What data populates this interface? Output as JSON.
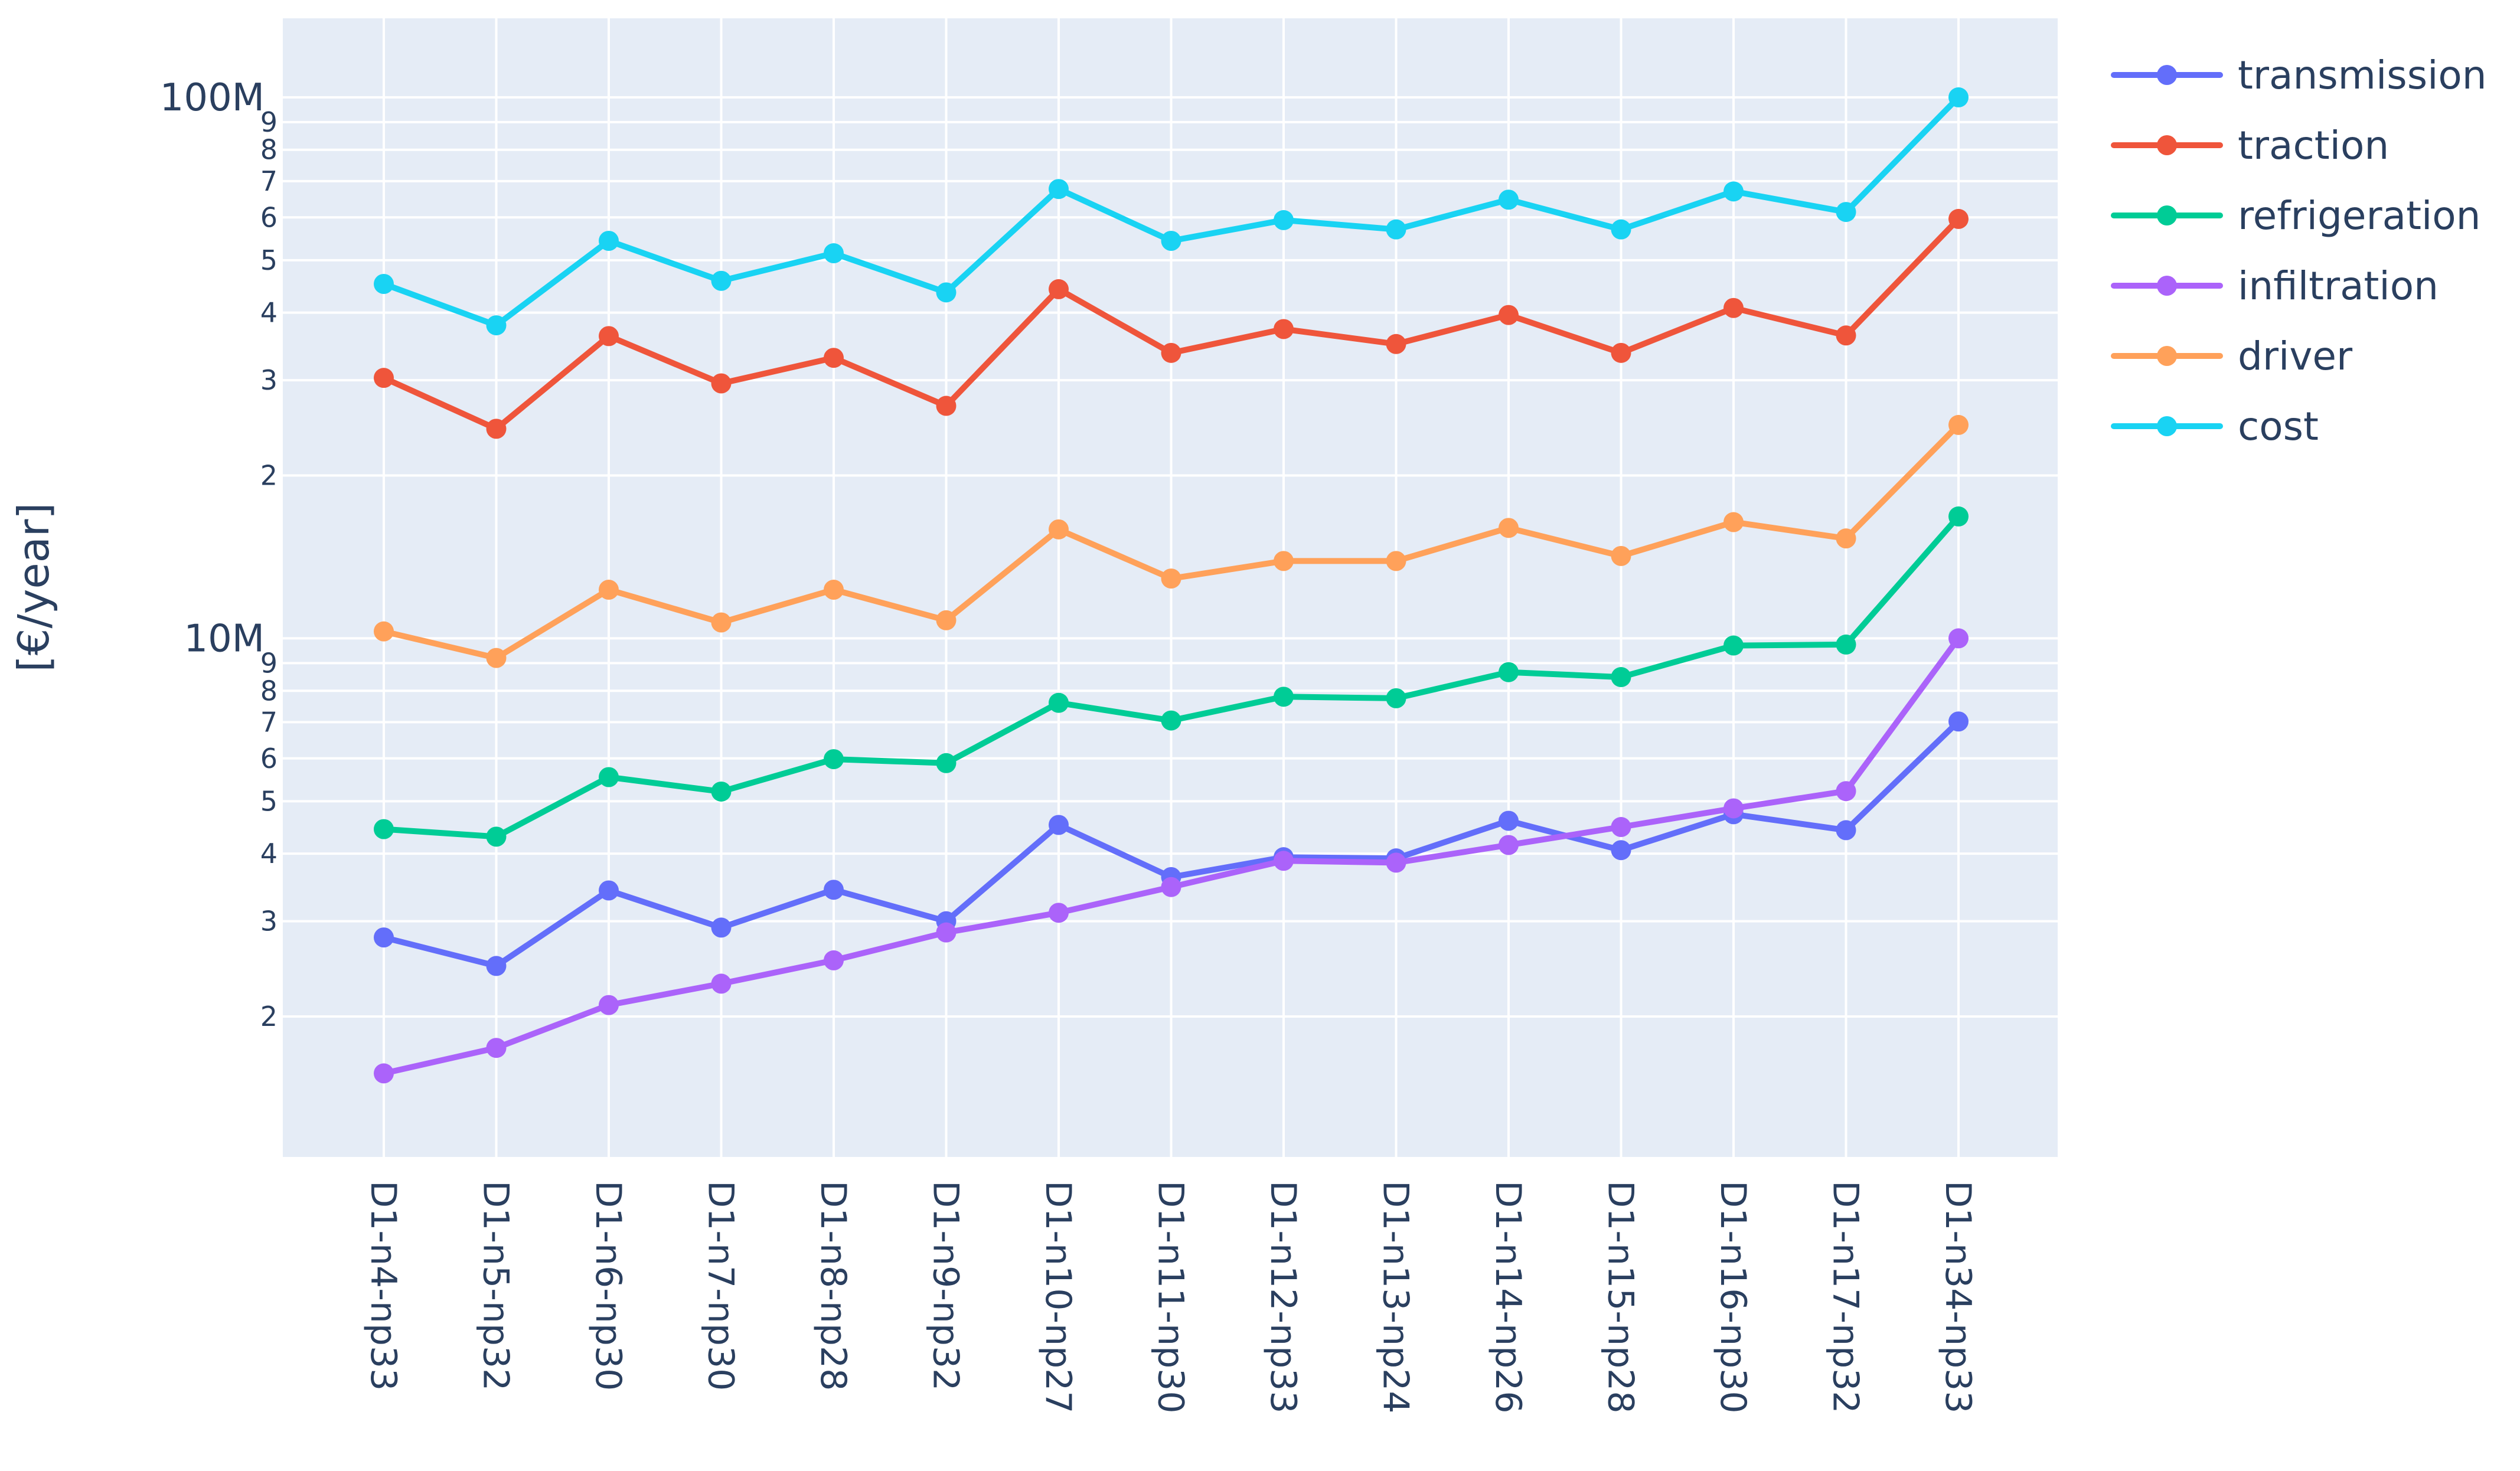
{
  "chart_data": {
    "type": "line",
    "title": "",
    "xlabel": "",
    "ylabel": "[€/year]",
    "yscale": "log",
    "ylim": [
      1100000,
      140000000
    ],
    "grid": true,
    "legend_position": "right",
    "categories": [
      "D1-n4-np33",
      "D1-n5-np32",
      "D1-n6-np30",
      "D1-n7-np30",
      "D1-n8-np28",
      "D1-n9-np32",
      "D1-n10-np27",
      "D1-n11-np30",
      "D1-n12-np33",
      "D1-n13-np24",
      "D1-n14-np26",
      "D1-n15-np28",
      "D1-n16-np30",
      "D1-n17-np32",
      "D1-n34-np33"
    ],
    "y_major_ticks": [
      {
        "value": 10000000,
        "label": "10M"
      },
      {
        "value": 100000000,
        "label": "100M"
      }
    ],
    "y_minor_ticks": [
      {
        "value": 2000000,
        "label": "2"
      },
      {
        "value": 3000000,
        "label": "3"
      },
      {
        "value": 4000000,
        "label": "4"
      },
      {
        "value": 5000000,
        "label": "5"
      },
      {
        "value": 6000000,
        "label": "6"
      },
      {
        "value": 7000000,
        "label": "7"
      },
      {
        "value": 8000000,
        "label": "8"
      },
      {
        "value": 9000000,
        "label": "9"
      },
      {
        "value": 20000000,
        "label": "2"
      },
      {
        "value": 30000000,
        "label": "3"
      },
      {
        "value": 40000000,
        "label": "4"
      },
      {
        "value": 50000000,
        "label": "5"
      },
      {
        "value": 60000000,
        "label": "6"
      },
      {
        "value": 70000000,
        "label": "7"
      },
      {
        "value": 80000000,
        "label": "8"
      },
      {
        "value": 90000000,
        "label": "9"
      }
    ],
    "series": [
      {
        "name": "transmission",
        "color": "#636efa",
        "values": [
          2800000,
          2480000,
          3420000,
          2920000,
          3430000,
          3000000,
          4520000,
          3620000,
          3940000,
          3920000,
          4600000,
          4060000,
          4730000,
          4420000,
          7020000
        ]
      },
      {
        "name": "traction",
        "color": "#ef553b",
        "values": [
          30300000,
          24400000,
          36200000,
          29600000,
          33000000,
          26900000,
          44200000,
          33700000,
          37300000,
          35000000,
          39600000,
          33700000,
          40800000,
          36300000,
          59600000
        ]
      },
      {
        "name": "refrigeration",
        "color": "#00cc96",
        "values": [
          4440000,
          4300000,
          5540000,
          5210000,
          5980000,
          5880000,
          7600000,
          7050000,
          7800000,
          7750000,
          8660000,
          8480000,
          9700000,
          9740000,
          16800000
        ]
      },
      {
        "name": "infiltration",
        "color": "#ab63fa",
        "values": [
          1570000,
          1750000,
          2100000,
          2300000,
          2540000,
          2860000,
          3110000,
          3470000,
          3880000,
          3850000,
          4150000,
          4480000,
          4850000,
          5220000,
          10000000
        ]
      },
      {
        "name": "driver",
        "color": "#ffa15a",
        "values": [
          10300000,
          9200000,
          12300000,
          10700000,
          12300000,
          10800000,
          15900000,
          12900000,
          13900000,
          13900000,
          16000000,
          14200000,
          16400000,
          15300000,
          24800000
        ]
      },
      {
        "name": "cost",
        "color": "#19d3f3",
        "values": [
          45200000,
          37900000,
          54300000,
          45800000,
          51500000,
          43600000,
          67700000,
          54300000,
          59300000,
          57000000,
          64700000,
          57000000,
          67000000,
          61400000,
          100000000
        ]
      }
    ]
  }
}
